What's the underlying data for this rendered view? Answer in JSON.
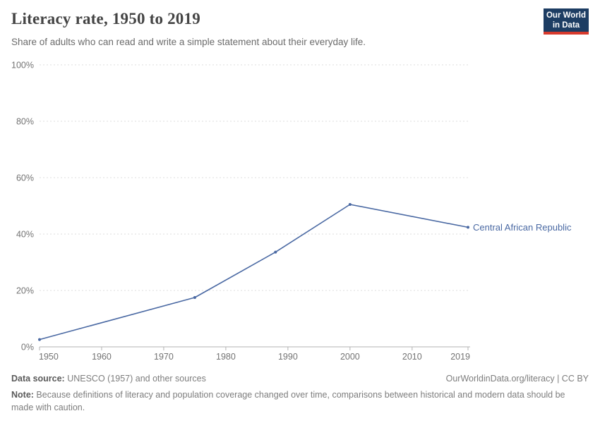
{
  "header": {
    "title": "Literacy rate, 1950 to 2019",
    "subtitle": "Share of adults who can read and write a simple statement about their everyday life.",
    "logo": {
      "line1": "Our World",
      "line2": "in Data"
    }
  },
  "colors": {
    "series_blue": "#4a69a3",
    "logo_navy": "#1d3d63",
    "logo_red": "#d73a2d",
    "grid_gray": "#dedede",
    "axis_gray": "#b3b3b3",
    "tick_label_gray": "#737373"
  },
  "chart_data": {
    "type": "line",
    "title": "Literacy rate, 1950 to 2019",
    "xlabel": "",
    "ylabel": "",
    "xlim": [
      1950,
      2019
    ],
    "ylim": [
      0,
      100
    ],
    "grid": "dashed horizontal gridlines at 20% intervals",
    "legend_position": "end-of-line label",
    "series": [
      {
        "name": "Central African Republic",
        "color": "#4a69a3",
        "x": [
          1950,
          1975,
          1988,
          2000,
          2019
        ],
        "values": [
          2.6,
          17.5,
          33.6,
          50.5,
          42.4
        ]
      }
    ],
    "y_ticks": [
      {
        "value": 0,
        "label": "0%"
      },
      {
        "value": 20,
        "label": "20%"
      },
      {
        "value": 40,
        "label": "40%"
      },
      {
        "value": 60,
        "label": "60%"
      },
      {
        "value": 80,
        "label": "80%"
      },
      {
        "value": 100,
        "label": "100%"
      }
    ],
    "x_ticks": [
      {
        "year": 1950,
        "label": "1950"
      },
      {
        "year": 1960,
        "label": "1960"
      },
      {
        "year": 1970,
        "label": "1970"
      },
      {
        "year": 1980,
        "label": "1980"
      },
      {
        "year": 1990,
        "label": "1990"
      },
      {
        "year": 2000,
        "label": "2000"
      },
      {
        "year": 2010,
        "label": "2010"
      },
      {
        "year": 2019,
        "label": "2019"
      }
    ]
  },
  "footer": {
    "source_label": "Data source:",
    "source_text": " UNESCO (1957) and other sources",
    "link": "OurWorldinData.org/literacy | CC BY",
    "note_label": "Note:",
    "note_text": " Because definitions of literacy and population coverage changed over time, comparisons between historical and modern data should be made with caution."
  }
}
